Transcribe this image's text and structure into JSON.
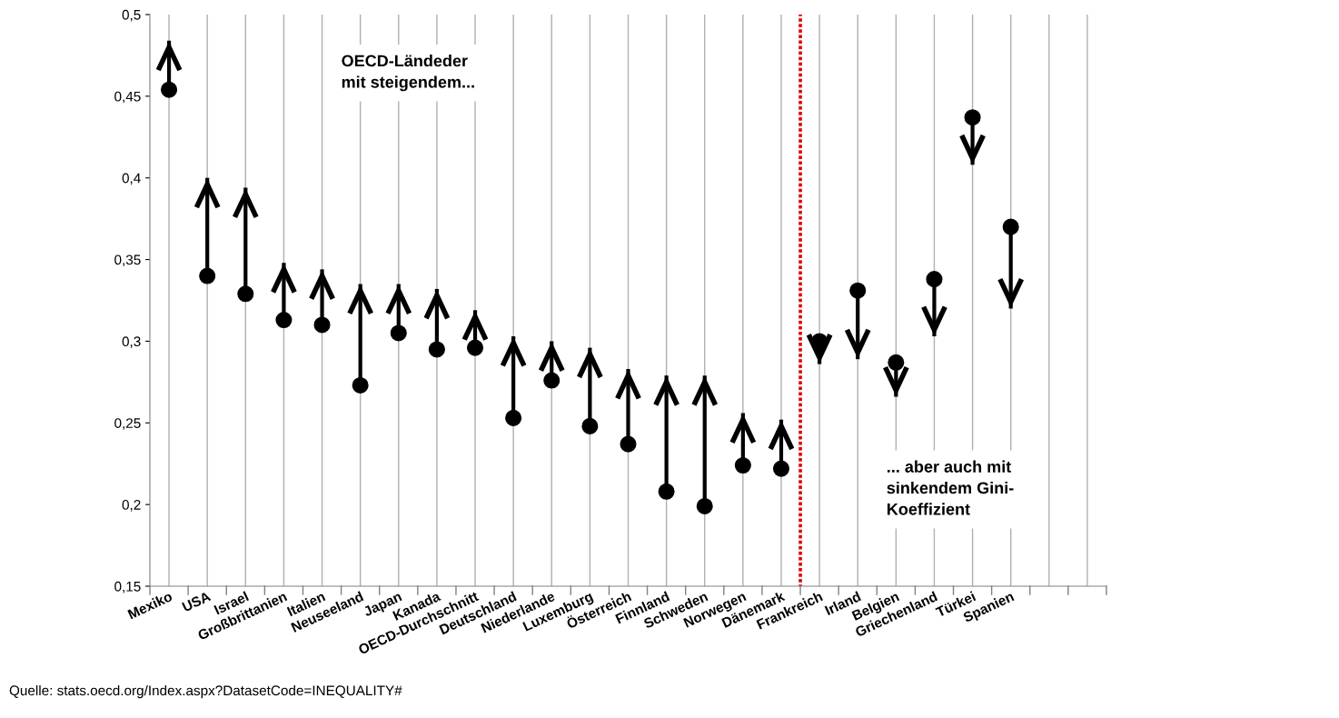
{
  "chart_data": {
    "type": "bar",
    "categories": [
      "Mexiko",
      "USA",
      "Israel",
      "Großbrittanien",
      "Italien",
      "Neuseeland",
      "Japan",
      "Kanada",
      "OECD-Durchschnitt",
      "Deutschland",
      "Niederlande",
      "Luxemburg",
      "Österreich",
      "Finnland",
      "Schweden",
      "Norwegen",
      "Dänemark",
      "Frankreich",
      "Irland",
      "Belgien",
      "Griechenland",
      "Türkei",
      "Spanien",
      null,
      null
    ],
    "series": [
      {
        "color": "#000000",
        "base": [
          0.454,
          0.34,
          0.329,
          0.313,
          0.31,
          0.273,
          0.305,
          0.295,
          0.296,
          0.253,
          0.276,
          0.248,
          0.237,
          0.208,
          0.199,
          0.224,
          0.222,
          0.3,
          0.331,
          0.287,
          0.338,
          0.437,
          0.37,
          null,
          null
        ],
        "values": [
          0.03,
          0.06,
          0.065,
          0.035,
          0.034,
          0.062,
          0.03,
          0.037,
          0.023,
          0.05,
          0.024,
          0.048,
          0.046,
          0.071,
          0.08,
          0.032,
          0.03,
          -0.014,
          -0.042,
          -0.021,
          -0.035,
          -0.029,
          -0.05,
          null,
          null
        ]
      }
    ],
    "ylim": [
      0.15,
      0.5
    ],
    "yticks": [
      {
        "value": 0.15,
        "label": "0,15"
      },
      {
        "value": 0.2,
        "label": "0,2"
      },
      {
        "value": 0.25,
        "label": "0,25"
      },
      {
        "value": 0.3,
        "label": "0,3"
      },
      {
        "value": 0.35,
        "label": "0,35"
      },
      {
        "value": 0.4,
        "label": "0,4"
      },
      {
        "value": 0.45,
        "label": "0,45"
      },
      {
        "value": 0.5,
        "label": "0,5"
      }
    ],
    "grid": "x",
    "annotations": [
      "OECD-Ländeder\nmit steigendem...",
      "... aber auch mit\nsinkendem Gini-\nKoeffizient",
      "Quelle: stats.oecd.org/Index.aspx?DatasetCode=INEQUALITY#"
    ]
  }
}
